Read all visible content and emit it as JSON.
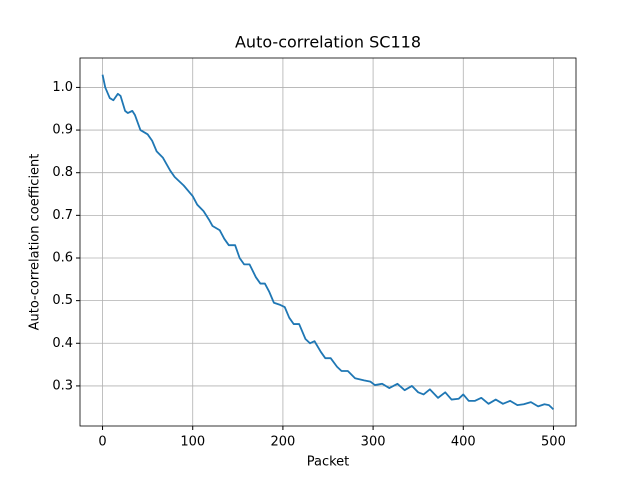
{
  "chart_data": {
    "type": "line",
    "title": "Auto-correlation SC118",
    "xlabel": "Packet",
    "ylabel": "Auto-correlation coefficient",
    "x": [
      0,
      3,
      8,
      12,
      17,
      20,
      25,
      28,
      33,
      36,
      42,
      50,
      55,
      60,
      67,
      75,
      80,
      90,
      100,
      105,
      112,
      118,
      122,
      130,
      135,
      140,
      147,
      152,
      157,
      163,
      170,
      175,
      180,
      185,
      190,
      197,
      202,
      207,
      212,
      218,
      225,
      230,
      235,
      242,
      247,
      253,
      260,
      265,
      272,
      280,
      290,
      297,
      302,
      310,
      318,
      327,
      335,
      343,
      350,
      356,
      363,
      372,
      380,
      387,
      395,
      400,
      406,
      413,
      420,
      428,
      436,
      444,
      452,
      460,
      467,
      475,
      483,
      490,
      495,
      500
    ],
    "series": [
      {
        "color": "#1f77b4",
        "values": [
          1.03,
          1.0,
          0.975,
          0.97,
          0.985,
          0.98,
          0.945,
          0.94,
          0.945,
          0.935,
          0.9,
          0.89,
          0.875,
          0.85,
          0.835,
          0.805,
          0.79,
          0.77,
          0.745,
          0.725,
          0.71,
          0.69,
          0.675,
          0.665,
          0.645,
          0.63,
          0.63,
          0.6,
          0.585,
          0.585,
          0.555,
          0.54,
          0.54,
          0.52,
          0.495,
          0.49,
          0.485,
          0.46,
          0.445,
          0.445,
          0.41,
          0.4,
          0.405,
          0.38,
          0.365,
          0.365,
          0.345,
          0.335,
          0.335,
          0.318,
          0.313,
          0.31,
          0.302,
          0.305,
          0.295,
          0.305,
          0.29,
          0.3,
          0.285,
          0.28,
          0.292,
          0.272,
          0.285,
          0.268,
          0.27,
          0.28,
          0.265,
          0.265,
          0.272,
          0.258,
          0.268,
          0.258,
          0.265,
          0.255,
          0.257,
          0.262,
          0.252,
          0.257,
          0.255,
          0.245
        ]
      }
    ],
    "xlim": [
      -25,
      525
    ],
    "ylim": [
      0.206,
      1.069
    ],
    "xticks": [
      0,
      100,
      200,
      300,
      400,
      500
    ],
    "yticks": [
      0.3,
      0.4,
      0.5,
      0.6,
      0.7,
      0.8,
      0.9,
      {
        "value": 1,
        "label": "1.0"
      }
    ],
    "grid": true
  }
}
